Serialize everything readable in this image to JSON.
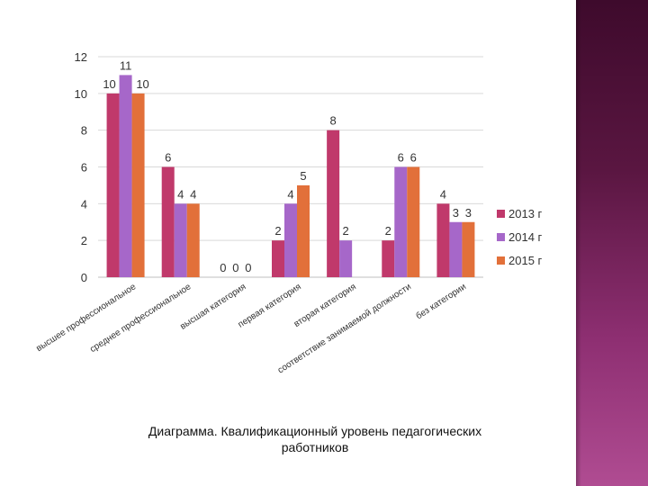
{
  "caption": {
    "line1": "Диаграмма. Квалификационный уровень педагогических",
    "line2": "работников"
  },
  "colors": {
    "accent_bar": "#5a1641",
    "gridline": "#d9d9d9",
    "axis": "#bfbfbf"
  },
  "chart_data": {
    "type": "bar",
    "title": "",
    "xlabel": "",
    "ylabel": "",
    "ylim": [
      0,
      12
    ],
    "yticks": [
      0,
      2,
      4,
      6,
      8,
      10,
      12
    ],
    "grid": true,
    "legend_position": "right",
    "categories": [
      "высшее профессиональное",
      "среднее профессиональное",
      "высшая категория",
      "первая категория",
      "вторая категория",
      "соответствие занимаемой должности",
      "без категории"
    ],
    "series": [
      {
        "name": "2013 г",
        "color": "#c0396b",
        "values": [
          10,
          6,
          0,
          2,
          8,
          2,
          4
        ],
        "labels": [
          "10",
          "6",
          "0",
          "2",
          "8",
          "2",
          "4"
        ]
      },
      {
        "name": "2014 г",
        "color": "#a667c9",
        "values": [
          11,
          4,
          0,
          4,
          2,
          6,
          3
        ],
        "labels": [
          "11",
          "4",
          "0",
          "4",
          "2",
          "6",
          "3"
        ]
      },
      {
        "name": "2015 г",
        "color": "#e2703a",
        "values": [
          10,
          4,
          0,
          5,
          null,
          6,
          3
        ],
        "labels": [
          "10",
          "4",
          "0",
          "5",
          "",
          "6",
          "3"
        ]
      }
    ]
  }
}
